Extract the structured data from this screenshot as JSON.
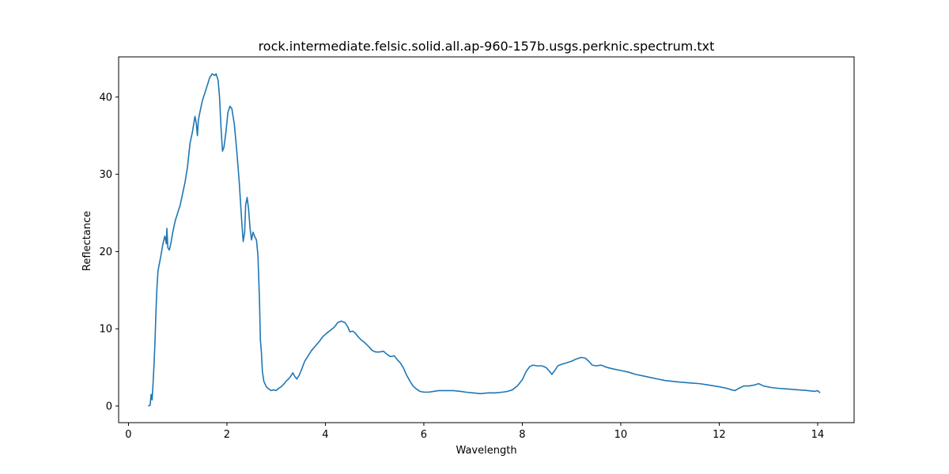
{
  "chart_data": {
    "type": "line",
    "title": "rock.intermediate.felsic.solid.all.ap-960-157b.usgs.perknic.spectrum.txt",
    "xlabel": "Wavelength",
    "ylabel": "Reflectance",
    "xlim": [
      -0.2,
      14.74
    ],
    "ylim": [
      -2.15,
      45.2
    ],
    "xticks": [
      0,
      2,
      4,
      6,
      8,
      10,
      12,
      14
    ],
    "yticks": [
      0,
      10,
      20,
      30,
      40
    ],
    "grid": false,
    "line_color": "#1f77b4",
    "series": [
      {
        "points": [
          [
            0.4,
            0.0
          ],
          [
            0.44,
            0.1
          ],
          [
            0.46,
            1.5
          ],
          [
            0.48,
            0.8
          ],
          [
            0.5,
            3.0
          ],
          [
            0.52,
            5.5
          ],
          [
            0.54,
            8.5
          ],
          [
            0.56,
            12.5
          ],
          [
            0.58,
            15.5
          ],
          [
            0.6,
            17.5
          ],
          [
            0.63,
            18.5
          ],
          [
            0.66,
            19.5
          ],
          [
            0.7,
            21.0
          ],
          [
            0.74,
            22.0
          ],
          [
            0.77,
            21.0
          ],
          [
            0.78,
            23.0
          ],
          [
            0.8,
            20.5
          ],
          [
            0.83,
            20.2
          ],
          [
            0.86,
            21.0
          ],
          [
            0.9,
            22.5
          ],
          [
            0.95,
            24.0
          ],
          [
            1.0,
            25.0
          ],
          [
            1.05,
            26.0
          ],
          [
            1.1,
            27.5
          ],
          [
            1.15,
            29.0
          ],
          [
            1.2,
            31.0
          ],
          [
            1.25,
            34.0
          ],
          [
            1.3,
            35.5
          ],
          [
            1.35,
            37.5
          ],
          [
            1.38,
            36.5
          ],
          [
            1.4,
            35.0
          ],
          [
            1.42,
            37.0
          ],
          [
            1.45,
            38.0
          ],
          [
            1.5,
            39.5
          ],
          [
            1.55,
            40.5
          ],
          [
            1.6,
            41.5
          ],
          [
            1.65,
            42.5
          ],
          [
            1.7,
            43.0
          ],
          [
            1.75,
            42.8
          ],
          [
            1.78,
            43.0
          ],
          [
            1.82,
            42.2
          ],
          [
            1.85,
            40.0
          ],
          [
            1.88,
            36.0
          ],
          [
            1.91,
            33.0
          ],
          [
            1.94,
            33.5
          ],
          [
            1.98,
            35.5
          ],
          [
            2.02,
            38.0
          ],
          [
            2.06,
            38.8
          ],
          [
            2.1,
            38.5
          ],
          [
            2.15,
            36.5
          ],
          [
            2.2,
            33.0
          ],
          [
            2.25,
            29.0
          ],
          [
            2.28,
            26.0
          ],
          [
            2.3,
            24.0
          ],
          [
            2.33,
            21.3
          ],
          [
            2.36,
            22.5
          ],
          [
            2.38,
            26.0
          ],
          [
            2.41,
            27.0
          ],
          [
            2.44,
            25.5
          ],
          [
            2.47,
            23.0
          ],
          [
            2.5,
            21.5
          ],
          [
            2.53,
            22.5
          ],
          [
            2.56,
            22.0
          ],
          [
            2.6,
            21.5
          ],
          [
            2.63,
            19.5
          ],
          [
            2.66,
            14.0
          ],
          [
            2.68,
            8.5
          ],
          [
            2.7,
            7.0
          ],
          [
            2.72,
            4.5
          ],
          [
            2.75,
            3.2
          ],
          [
            2.8,
            2.5
          ],
          [
            2.85,
            2.2
          ],
          [
            2.9,
            2.0
          ],
          [
            2.95,
            2.1
          ],
          [
            3.0,
            2.0
          ],
          [
            3.05,
            2.3
          ],
          [
            3.1,
            2.5
          ],
          [
            3.15,
            2.8
          ],
          [
            3.2,
            3.2
          ],
          [
            3.25,
            3.5
          ],
          [
            3.3,
            3.9
          ],
          [
            3.34,
            4.3
          ],
          [
            3.38,
            3.8
          ],
          [
            3.42,
            3.5
          ],
          [
            3.47,
            4.0
          ],
          [
            3.52,
            4.8
          ],
          [
            3.58,
            5.8
          ],
          [
            3.65,
            6.5
          ],
          [
            3.72,
            7.2
          ],
          [
            3.8,
            7.8
          ],
          [
            3.88,
            8.4
          ],
          [
            3.95,
            9.0
          ],
          [
            4.02,
            9.4
          ],
          [
            4.1,
            9.8
          ],
          [
            4.18,
            10.2
          ],
          [
            4.25,
            10.8
          ],
          [
            4.32,
            11.0
          ],
          [
            4.4,
            10.8
          ],
          [
            4.45,
            10.3
          ],
          [
            4.5,
            9.6
          ],
          [
            4.55,
            9.7
          ],
          [
            4.6,
            9.5
          ],
          [
            4.66,
            9.0
          ],
          [
            4.72,
            8.6
          ],
          [
            4.8,
            8.2
          ],
          [
            4.88,
            7.7
          ],
          [
            4.95,
            7.2
          ],
          [
            5.02,
            7.0
          ],
          [
            5.1,
            7.0
          ],
          [
            5.18,
            7.1
          ],
          [
            5.25,
            6.7
          ],
          [
            5.32,
            6.4
          ],
          [
            5.4,
            6.5
          ],
          [
            5.46,
            6.0
          ],
          [
            5.52,
            5.6
          ],
          [
            5.58,
            5.0
          ],
          [
            5.65,
            4.0
          ],
          [
            5.72,
            3.2
          ],
          [
            5.78,
            2.6
          ],
          [
            5.85,
            2.2
          ],
          [
            5.92,
            1.9
          ],
          [
            6.0,
            1.8
          ],
          [
            6.1,
            1.8
          ],
          [
            6.2,
            1.9
          ],
          [
            6.3,
            2.0
          ],
          [
            6.45,
            2.0
          ],
          [
            6.6,
            2.0
          ],
          [
            6.75,
            1.9
          ],
          [
            6.85,
            1.8
          ],
          [
            7.0,
            1.7
          ],
          [
            7.15,
            1.6
          ],
          [
            7.3,
            1.7
          ],
          [
            7.45,
            1.7
          ],
          [
            7.6,
            1.8
          ],
          [
            7.7,
            1.9
          ],
          [
            7.8,
            2.1
          ],
          [
            7.9,
            2.6
          ],
          [
            8.0,
            3.4
          ],
          [
            8.08,
            4.5
          ],
          [
            8.15,
            5.1
          ],
          [
            8.22,
            5.3
          ],
          [
            8.3,
            5.2
          ],
          [
            8.4,
            5.2
          ],
          [
            8.48,
            5.0
          ],
          [
            8.54,
            4.6
          ],
          [
            8.6,
            4.1
          ],
          [
            8.66,
            4.6
          ],
          [
            8.72,
            5.2
          ],
          [
            8.8,
            5.4
          ],
          [
            8.9,
            5.6
          ],
          [
            9.0,
            5.8
          ],
          [
            9.1,
            6.1
          ],
          [
            9.2,
            6.3
          ],
          [
            9.28,
            6.2
          ],
          [
            9.35,
            5.8
          ],
          [
            9.42,
            5.3
          ],
          [
            9.5,
            5.2
          ],
          [
            9.6,
            5.3
          ],
          [
            9.72,
            5.0
          ],
          [
            9.85,
            4.8
          ],
          [
            10.0,
            4.6
          ],
          [
            10.15,
            4.4
          ],
          [
            10.3,
            4.1
          ],
          [
            10.45,
            3.9
          ],
          [
            10.6,
            3.7
          ],
          [
            10.75,
            3.5
          ],
          [
            10.9,
            3.3
          ],
          [
            11.05,
            3.2
          ],
          [
            11.2,
            3.1
          ],
          [
            11.4,
            3.0
          ],
          [
            11.6,
            2.9
          ],
          [
            11.8,
            2.7
          ],
          [
            12.0,
            2.5
          ],
          [
            12.15,
            2.3
          ],
          [
            12.25,
            2.1
          ],
          [
            12.32,
            2.0
          ],
          [
            12.4,
            2.3
          ],
          [
            12.5,
            2.6
          ],
          [
            12.6,
            2.6
          ],
          [
            12.7,
            2.7
          ],
          [
            12.8,
            2.9
          ],
          [
            12.9,
            2.6
          ],
          [
            13.05,
            2.4
          ],
          [
            13.2,
            2.3
          ],
          [
            13.4,
            2.2
          ],
          [
            13.6,
            2.1
          ],
          [
            13.8,
            2.0
          ],
          [
            13.95,
            1.9
          ],
          [
            14.0,
            2.0
          ],
          [
            14.05,
            1.7
          ]
        ]
      }
    ]
  }
}
